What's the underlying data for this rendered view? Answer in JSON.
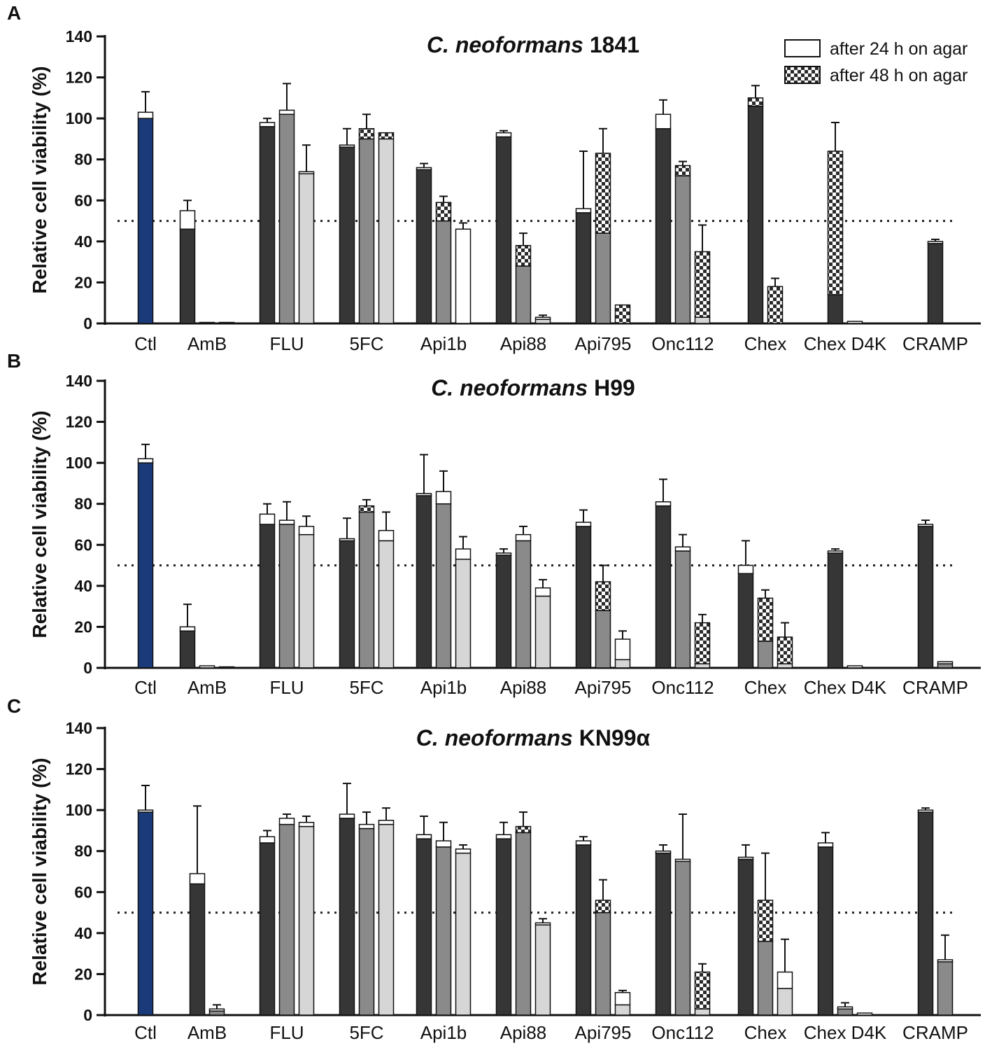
{
  "colors": {
    "ctl": "#1a3a7a",
    "dark": "#363636",
    "mid": "#8a8a8a",
    "light": "#d6d6d6",
    "axis": "#111111"
  },
  "legend": {
    "items": [
      {
        "label": "after 24 h on agar",
        "pattern": "white"
      },
      {
        "label": "after 48 h on agar",
        "pattern": "checker"
      }
    ]
  },
  "chart_data": [
    {
      "type": "bar",
      "panel": "A",
      "title_italic": "C. neoformans",
      "title_strain": "1841",
      "ylabel": "Relative cell viability (%)",
      "ylim": [
        0,
        140
      ],
      "yticks": [
        0,
        20,
        40,
        60,
        80,
        100,
        120,
        140
      ],
      "threshold": 50,
      "categories": [
        "Ctl",
        "AmB",
        "FLU",
        "5FC",
        "Api1b",
        "Api88",
        "Api795",
        "Onc112",
        "Chex",
        "Chex D4K",
        "CRAMP"
      ],
      "groups": [
        [
          {
            "shade": "ctl",
            "base": 100,
            "top": 103,
            "err": 113,
            "pattern": "white"
          }
        ],
        [
          {
            "shade": "dark",
            "base": 46,
            "top": 55,
            "err": 60,
            "pattern": "white"
          },
          {
            "shade": "mid",
            "base": 0,
            "top": 0.5,
            "err": 0.5,
            "pattern": "white"
          },
          {
            "shade": "light",
            "base": 0,
            "top": 0.5,
            "err": 0.5,
            "pattern": "white"
          }
        ],
        [
          {
            "shade": "dark",
            "base": 96,
            "top": 98,
            "err": 100,
            "pattern": "white"
          },
          {
            "shade": "mid",
            "base": 102,
            "top": 104,
            "err": 117,
            "pattern": "white"
          },
          {
            "shade": "light",
            "base": 73,
            "top": 74,
            "err": 87,
            "pattern": "white"
          }
        ],
        [
          {
            "shade": "dark",
            "base": 86,
            "top": 87,
            "err": 95,
            "pattern": "white"
          },
          {
            "shade": "mid",
            "base": 90,
            "top": 95,
            "err": 102,
            "pattern": "checker"
          },
          {
            "shade": "light",
            "base": 90,
            "top": 93,
            "err": 93,
            "pattern": "checker"
          }
        ],
        [
          {
            "shade": "dark",
            "base": 75,
            "top": 76,
            "err": 78,
            "pattern": "white"
          },
          {
            "shade": "mid",
            "base": 50,
            "top": 59,
            "err": 62,
            "pattern": "checker"
          },
          {
            "shade": "light",
            "base": 0,
            "top": 46,
            "err": 49,
            "pattern": "white"
          }
        ],
        [
          {
            "shade": "dark",
            "base": 91,
            "top": 93,
            "err": 94,
            "pattern": "white"
          },
          {
            "shade": "mid",
            "base": 28,
            "top": 38,
            "err": 44,
            "pattern": "checker"
          },
          {
            "shade": "light",
            "base": 2,
            "top": 3,
            "err": 4,
            "pattern": "white"
          }
        ],
        [
          {
            "shade": "dark",
            "base": 54,
            "top": 56,
            "err": 84,
            "pattern": "white"
          },
          {
            "shade": "mid",
            "base": 44,
            "top": 83,
            "err": 95,
            "pattern": "checker"
          },
          {
            "shade": "light",
            "base": 0,
            "top": 9,
            "err": 9,
            "pattern": "checker"
          }
        ],
        [
          {
            "shade": "dark",
            "base": 95,
            "top": 102,
            "err": 109,
            "pattern": "white"
          },
          {
            "shade": "mid",
            "base": 72,
            "top": 77,
            "err": 79,
            "pattern": "checker"
          },
          {
            "shade": "light",
            "base": 3,
            "top": 35,
            "err": 48,
            "pattern": "checker"
          }
        ],
        [
          {
            "shade": "dark",
            "base": 106,
            "top": 110,
            "err": 116,
            "pattern": "checker"
          },
          {
            "shade": "mid",
            "base": 0,
            "top": 18,
            "err": 22,
            "pattern": "checker"
          }
        ],
        [
          {
            "shade": "dark",
            "base": 14,
            "top": 84,
            "err": 98,
            "pattern": "white-checker"
          },
          {
            "shade": "mid",
            "base": 0,
            "top": 1,
            "err": 1,
            "pattern": "white"
          }
        ],
        [
          {
            "shade": "dark",
            "base": 39,
            "top": 40,
            "err": 41,
            "pattern": "white"
          }
        ]
      ]
    },
    {
      "type": "bar",
      "panel": "B",
      "title_italic": "C. neoformans",
      "title_strain": "H99",
      "ylabel": "Relative cell viability (%)",
      "ylim": [
        0,
        140
      ],
      "yticks": [
        0,
        20,
        40,
        60,
        80,
        100,
        120,
        140
      ],
      "threshold": 50,
      "categories": [
        "Ctl",
        "AmB",
        "FLU",
        "5FC",
        "Api1b",
        "Api88",
        "Api795",
        "Onc112",
        "Chex",
        "Chex D4K",
        "CRAMP"
      ],
      "groups": [
        [
          {
            "shade": "ctl",
            "base": 100,
            "top": 102,
            "err": 109,
            "pattern": "white"
          }
        ],
        [
          {
            "shade": "dark",
            "base": 18,
            "top": 20,
            "err": 31,
            "pattern": "white"
          },
          {
            "shade": "mid",
            "base": 0,
            "top": 1,
            "err": 1,
            "pattern": "white"
          },
          {
            "shade": "light",
            "base": 0,
            "top": 0.5,
            "err": 0.5,
            "pattern": "white"
          }
        ],
        [
          {
            "shade": "dark",
            "base": 70,
            "top": 75,
            "err": 80,
            "pattern": "white"
          },
          {
            "shade": "mid",
            "base": 70,
            "top": 72,
            "err": 81,
            "pattern": "white"
          },
          {
            "shade": "light",
            "base": 65,
            "top": 69,
            "err": 74,
            "pattern": "white"
          }
        ],
        [
          {
            "shade": "dark",
            "base": 62,
            "top": 63,
            "err": 73,
            "pattern": "white"
          },
          {
            "shade": "mid",
            "base": 76,
            "top": 79,
            "err": 82,
            "pattern": "checker"
          },
          {
            "shade": "light",
            "base": 62,
            "top": 67,
            "err": 76,
            "pattern": "white"
          }
        ],
        [
          {
            "shade": "dark",
            "base": 84,
            "top": 85,
            "err": 104,
            "pattern": "white"
          },
          {
            "shade": "mid",
            "base": 80,
            "top": 86,
            "err": 96,
            "pattern": "white"
          },
          {
            "shade": "light",
            "base": 53,
            "top": 58,
            "err": 64,
            "pattern": "white"
          }
        ],
        [
          {
            "shade": "dark",
            "base": 55,
            "top": 56,
            "err": 58,
            "pattern": "white"
          },
          {
            "shade": "mid",
            "base": 62,
            "top": 65,
            "err": 69,
            "pattern": "white"
          },
          {
            "shade": "light",
            "base": 35,
            "top": 39,
            "err": 43,
            "pattern": "white"
          }
        ],
        [
          {
            "shade": "dark",
            "base": 69,
            "top": 71,
            "err": 77,
            "pattern": "white"
          },
          {
            "shade": "mid",
            "base": 28,
            "top": 42,
            "err": 50,
            "pattern": "checker"
          },
          {
            "shade": "light",
            "base": 4,
            "top": 14,
            "err": 18,
            "pattern": "white"
          }
        ],
        [
          {
            "shade": "dark",
            "base": 79,
            "top": 81,
            "err": 92,
            "pattern": "white"
          },
          {
            "shade": "mid",
            "base": 57,
            "top": 59,
            "err": 65,
            "pattern": "white"
          },
          {
            "shade": "light",
            "base": 2,
            "top": 22,
            "err": 26,
            "pattern": "checker"
          }
        ],
        [
          {
            "shade": "dark",
            "base": 46,
            "top": 50,
            "err": 62,
            "pattern": "white"
          },
          {
            "shade": "mid",
            "base": 13,
            "top": 34,
            "err": 38,
            "pattern": "checker"
          },
          {
            "shade": "light",
            "base": 2,
            "top": 15,
            "err": 22,
            "pattern": "checker"
          }
        ],
        [
          {
            "shade": "dark",
            "base": 56,
            "top": 57,
            "err": 58,
            "pattern": "white"
          },
          {
            "shade": "mid",
            "base": 0,
            "top": 1,
            "err": 1,
            "pattern": "white"
          }
        ],
        [
          {
            "shade": "dark",
            "base": 69,
            "top": 70,
            "err": 72,
            "pattern": "white"
          },
          {
            "shade": "mid",
            "base": 2,
            "top": 3,
            "err": 3,
            "pattern": "white"
          }
        ]
      ]
    },
    {
      "type": "bar",
      "panel": "C",
      "title_italic": "C. neoformans",
      "title_strain": "KN99α",
      "ylabel": "Relative cell viability (%)",
      "ylim": [
        0,
        140
      ],
      "yticks": [
        0,
        20,
        40,
        60,
        80,
        100,
        120,
        140
      ],
      "threshold": 50,
      "categories": [
        "Ctl",
        "AmB",
        "FLU",
        "5FC",
        "Api1b",
        "Api88",
        "Api795",
        "Onc112",
        "Chex",
        "Chex D4K",
        "CRAMP"
      ],
      "groups": [
        [
          {
            "shade": "ctl",
            "base": 99,
            "top": 100,
            "err": 112,
            "pattern": "white"
          }
        ],
        [
          {
            "shade": "dark",
            "base": 64,
            "top": 69,
            "err": 102,
            "pattern": "white"
          },
          {
            "shade": "mid",
            "base": 2,
            "top": 3,
            "err": 5,
            "pattern": "white"
          }
        ],
        [
          {
            "shade": "dark",
            "base": 84,
            "top": 87,
            "err": 90,
            "pattern": "white"
          },
          {
            "shade": "mid",
            "base": 93,
            "top": 96,
            "err": 98,
            "pattern": "white"
          },
          {
            "shade": "light",
            "base": 92,
            "top": 94,
            "err": 97,
            "pattern": "white"
          }
        ],
        [
          {
            "shade": "dark",
            "base": 96,
            "top": 98,
            "err": 113,
            "pattern": "white"
          },
          {
            "shade": "mid",
            "base": 91,
            "top": 93,
            "err": 99,
            "pattern": "white"
          },
          {
            "shade": "light",
            "base": 93,
            "top": 95,
            "err": 101,
            "pattern": "white"
          }
        ],
        [
          {
            "shade": "dark",
            "base": 86,
            "top": 88,
            "err": 97,
            "pattern": "white"
          },
          {
            "shade": "mid",
            "base": 82,
            "top": 85,
            "err": 94,
            "pattern": "white"
          },
          {
            "shade": "light",
            "base": 79,
            "top": 81,
            "err": 83,
            "pattern": "white"
          }
        ],
        [
          {
            "shade": "dark",
            "base": 86,
            "top": 88,
            "err": 94,
            "pattern": "white"
          },
          {
            "shade": "mid",
            "base": 89,
            "top": 92,
            "err": 99,
            "pattern": "checker"
          },
          {
            "shade": "light",
            "base": 44,
            "top": 45,
            "err": 47,
            "pattern": "white"
          }
        ],
        [
          {
            "shade": "dark",
            "base": 83,
            "top": 85,
            "err": 87,
            "pattern": "white"
          },
          {
            "shade": "mid",
            "base": 50,
            "top": 56,
            "err": 66,
            "pattern": "checker"
          },
          {
            "shade": "light",
            "base": 5,
            "top": 11,
            "err": 12,
            "pattern": "white"
          }
        ],
        [
          {
            "shade": "dark",
            "base": 79,
            "top": 80,
            "err": 83,
            "pattern": "white"
          },
          {
            "shade": "mid",
            "base": 75,
            "top": 76,
            "err": 98,
            "pattern": "white"
          },
          {
            "shade": "light",
            "base": 3,
            "top": 21,
            "err": 25,
            "pattern": "checker"
          }
        ],
        [
          {
            "shade": "dark",
            "base": 76,
            "top": 77,
            "err": 83,
            "pattern": "white"
          },
          {
            "shade": "mid",
            "base": 36,
            "top": 56,
            "err": 79,
            "pattern": "checker"
          },
          {
            "shade": "light",
            "base": 13,
            "top": 21,
            "err": 37,
            "pattern": "white"
          }
        ],
        [
          {
            "shade": "dark",
            "base": 82,
            "top": 84,
            "err": 89,
            "pattern": "white"
          },
          {
            "shade": "mid",
            "base": 3,
            "top": 4,
            "err": 6,
            "pattern": "white"
          },
          {
            "shade": "light",
            "base": 0,
            "top": 1,
            "err": 1,
            "pattern": "white"
          }
        ],
        [
          {
            "shade": "dark",
            "base": 99,
            "top": 100,
            "err": 101,
            "pattern": "white"
          },
          {
            "shade": "mid",
            "base": 26,
            "top": 27,
            "err": 39,
            "pattern": "white"
          }
        ]
      ]
    }
  ]
}
